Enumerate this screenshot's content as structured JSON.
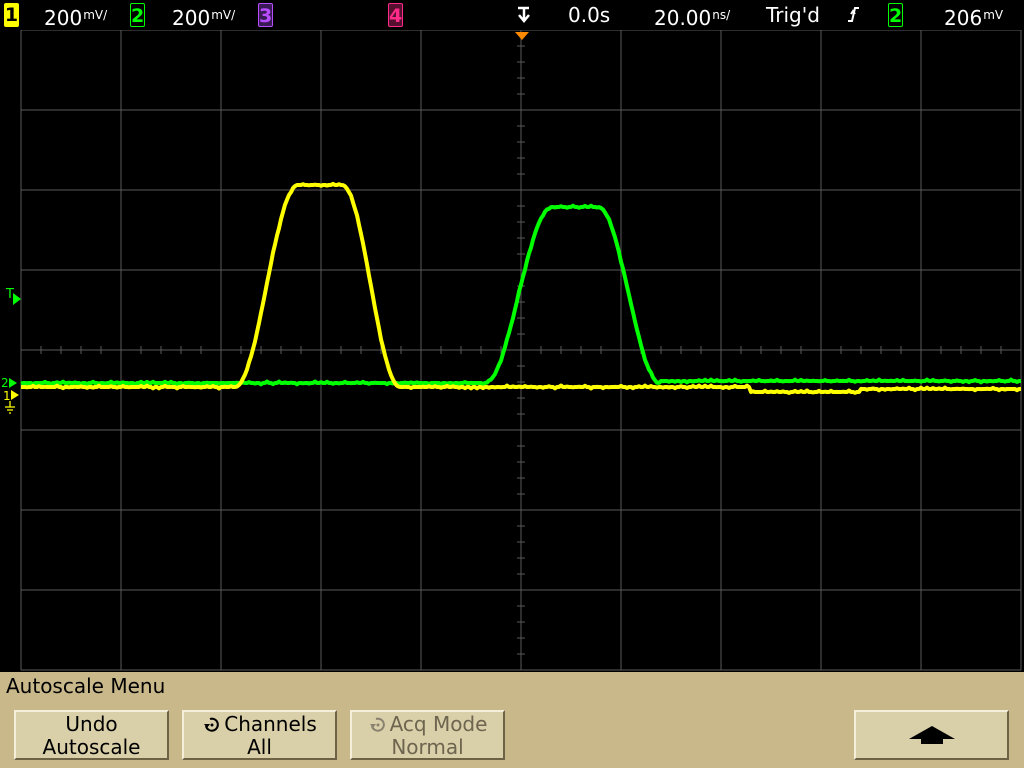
{
  "topbar": {
    "channels": [
      {
        "num": "1",
        "scale": "200",
        "unit": "mV/",
        "color": "#ffff00"
      },
      {
        "num": "2",
        "scale": "200",
        "unit": "mV/",
        "color": "#00ff00"
      },
      {
        "num": "3",
        "color": "#b84cff"
      },
      {
        "num": "4",
        "color": "#ff2a8a"
      }
    ],
    "time_ref_icon": "trigger-delay-arrow-icon",
    "delay": "0.0s",
    "timebase_scale": "20.00",
    "timebase_unit": "ns/",
    "trigger_status": "Trig'd",
    "trigger_slope_icon": "rising-edge-icon",
    "trigger_source": "2",
    "trigger_level_value": "206",
    "trigger_level_unit": "mV"
  },
  "screen": {
    "markers": {
      "trigger_level": "T",
      "ch2_ground": "2",
      "ch1_ground": "1"
    }
  },
  "menu": {
    "title": "Autoscale Menu",
    "softkeys": [
      {
        "line1": "Undo",
        "line2": "Autoscale",
        "enabled": true
      },
      {
        "line1": "Channels",
        "line2": "All",
        "icon": "rotary-knob-icon",
        "enabled": true
      },
      {
        "line1": "Acq Mode",
        "line2": "Normal",
        "icon": "rotary-knob-icon",
        "enabled": false
      },
      {
        "icon": "up-arrow-icon",
        "enabled": true
      }
    ]
  },
  "colors": {
    "ch1": "#ffff00",
    "ch2": "#00ff00",
    "ch3": "#b84cff",
    "ch4": "#ff2a8a",
    "graticule": "#5a5a5a",
    "menu_bg": "#c8b88a"
  }
}
